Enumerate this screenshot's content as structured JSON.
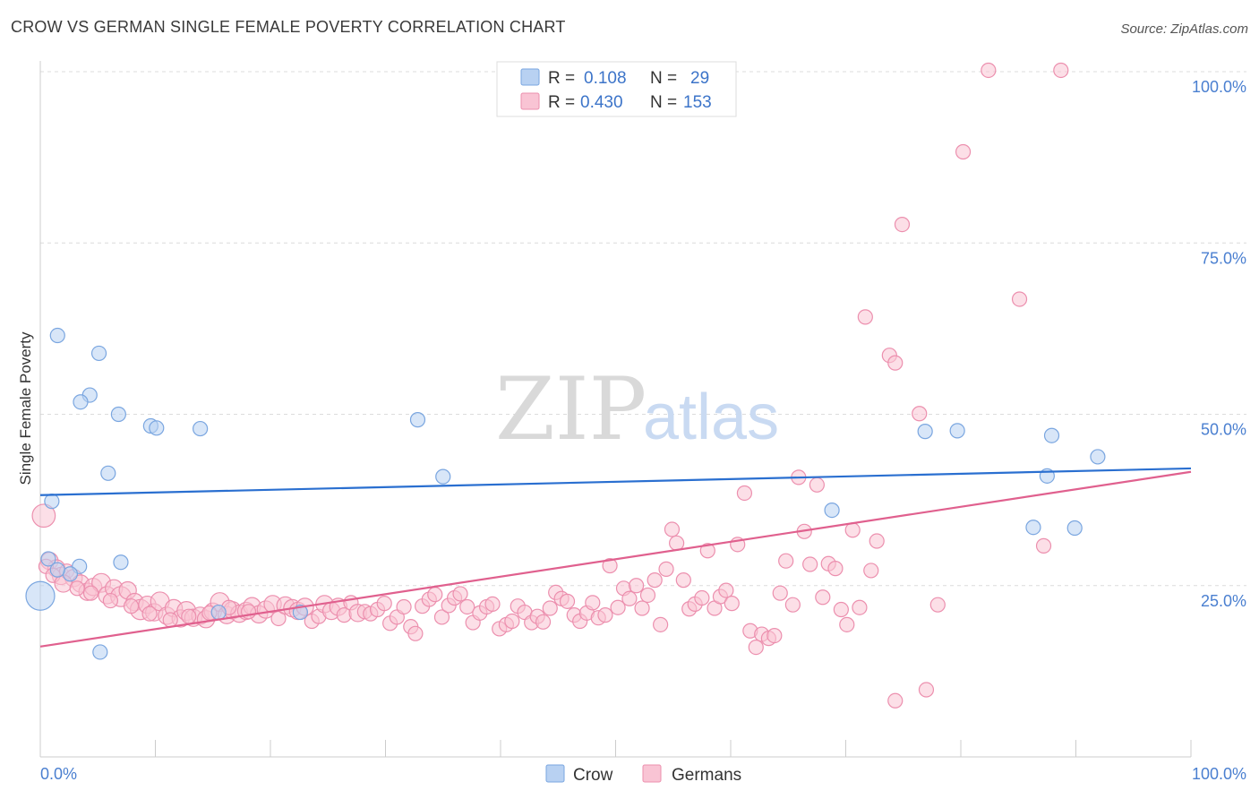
{
  "title": "CROW VS GERMAN SINGLE FEMALE POVERTY CORRELATION CHART",
  "source": "Source: ZipAtlas.com",
  "watermark": {
    "zip": "ZIP",
    "atlas": "atlas"
  },
  "colors": {
    "crow_fill": "#b8d1f2",
    "crow_stroke": "#7aa6e0",
    "crow_line": "#2a6fd0",
    "german_fill": "#f9c4d4",
    "german_stroke": "#ec8fae",
    "german_line": "#e0608e",
    "grid": "#dcdcdc",
    "tick_label": "#4a7fd0"
  },
  "legend": {
    "rows": [
      {
        "r_label": "R =",
        "r_value": "0.108",
        "n_label": "N =",
        "n_value": "29"
      },
      {
        "r_label": "R =",
        "r_value": "0.430",
        "n_label": "N =",
        "n_value": "153"
      }
    ]
  },
  "bottom_legend": [
    "Crow",
    "Germans"
  ],
  "chart_data": {
    "type": "scatter",
    "title": "CROW VS GERMAN SINGLE FEMALE POVERTY CORRELATION CHART",
    "xlabel": "",
    "ylabel": "Single Female Poverty",
    "xlim": [
      0,
      100
    ],
    "ylim": [
      0,
      101
    ],
    "x_tick_labels": [
      "0.0%",
      "100.0%"
    ],
    "y_ticks": [
      25,
      50,
      75,
      100
    ],
    "y_tick_labels": [
      "25.0%",
      "50.0%",
      "75.0%",
      "100.0%"
    ],
    "grid": true,
    "legend_placement": "top-center",
    "series": [
      {
        "name": "Crow",
        "stats": {
          "R": 0.108,
          "N": 29
        },
        "trend": {
          "x": [
            0,
            100
          ],
          "y": [
            38.2,
            42.1
          ]
        },
        "points": [
          [
            0,
            23.5,
            2
          ],
          [
            1.5,
            61.5,
            1
          ],
          [
            1.0,
            37.3,
            1
          ],
          [
            3.4,
            27.8,
            1
          ],
          [
            2.6,
            26.7,
            1
          ],
          [
            0.7,
            28.9,
            1
          ],
          [
            5.1,
            58.9,
            1
          ],
          [
            4.3,
            52.8,
            1
          ],
          [
            3.5,
            51.8,
            1
          ],
          [
            6.8,
            50.0,
            1
          ],
          [
            5.9,
            41.4,
            1
          ],
          [
            7.0,
            28.4,
            1
          ],
          [
            5.2,
            15.3,
            1
          ],
          [
            9.6,
            48.3,
            1
          ],
          [
            10.1,
            48.0,
            1
          ],
          [
            13.9,
            47.9,
            1
          ],
          [
            15.5,
            21.1,
            1
          ],
          [
            22.6,
            21.1,
            1
          ],
          [
            32.8,
            49.2,
            1
          ],
          [
            35.0,
            40.9,
            1
          ],
          [
            68.8,
            36.0,
            1
          ],
          [
            76.9,
            47.5,
            1
          ],
          [
            79.7,
            47.6,
            1
          ],
          [
            86.3,
            33.5,
            1
          ],
          [
            87.5,
            41.0,
            1
          ],
          [
            87.9,
            46.9,
            1
          ],
          [
            89.9,
            33.4,
            1
          ],
          [
            91.9,
            43.8,
            1
          ],
          [
            1.5,
            27.3,
            1
          ]
        ]
      },
      {
        "name": "Germans",
        "stats": {
          "R": 0.43,
          "N": 153
        },
        "trend": {
          "x": [
            0,
            100
          ],
          "y": [
            16.1,
            41.6
          ]
        },
        "points": [
          [
            0.3,
            35.2,
            1.6
          ],
          [
            0.8,
            28.6,
            1.2
          ],
          [
            1.4,
            27.5,
            1.2
          ],
          [
            1.8,
            26.4,
            1.2
          ],
          [
            2.3,
            27.1,
            1
          ],
          [
            2.9,
            26.1,
            1.2
          ],
          [
            3.5,
            25.3,
            1.2
          ],
          [
            4.1,
            24.1,
            1.2
          ],
          [
            4.6,
            24.8,
            1.2
          ],
          [
            5.3,
            25.4,
            1.3
          ],
          [
            5.8,
            23.6,
            1.2
          ],
          [
            6.4,
            24.6,
            1.2
          ],
          [
            7.0,
            23.4,
            1.4
          ],
          [
            7.6,
            24.3,
            1.2
          ],
          [
            8.2,
            22.6,
            1.2
          ],
          [
            8.7,
            21.5,
            1.4
          ],
          [
            9.3,
            22.2,
            1.2
          ],
          [
            9.9,
            21.1,
            1.2
          ],
          [
            10.4,
            22.7,
            1.3
          ],
          [
            11.0,
            20.6,
            1.2
          ],
          [
            11.6,
            21.7,
            1.2
          ],
          [
            12.2,
            20.2,
            1.2
          ],
          [
            12.7,
            21.3,
            1.3
          ],
          [
            13.3,
            20.3,
            1.2
          ],
          [
            13.9,
            20.6,
            1.2
          ],
          [
            14.4,
            20.1,
            1.2
          ],
          [
            15.0,
            21.2,
            1.2
          ],
          [
            15.6,
            22.6,
            1.3
          ],
          [
            16.2,
            20.7,
            1.2
          ],
          [
            16.7,
            21.4,
            1.2
          ],
          [
            17.3,
            20.9,
            1.2
          ],
          [
            17.9,
            21.3,
            1.2
          ],
          [
            18.4,
            22.0,
            1.2
          ],
          [
            19.0,
            20.8,
            1.2
          ],
          [
            19.6,
            21.5,
            1.2
          ],
          [
            20.2,
            22.3,
            1.2
          ],
          [
            20.7,
            20.2,
            1
          ],
          [
            21.3,
            22.1,
            1.2
          ],
          [
            21.9,
            21.7,
            1.2
          ],
          [
            22.4,
            21.3,
            1.2
          ],
          [
            23.0,
            21.9,
            1.2
          ],
          [
            23.6,
            19.8,
            1
          ],
          [
            24.2,
            20.5,
            1
          ],
          [
            24.7,
            22.3,
            1.2
          ],
          [
            25.3,
            21.3,
            1.2
          ],
          [
            25.9,
            21.9,
            1.2
          ],
          [
            26.4,
            20.7,
            1
          ],
          [
            27.0,
            22.5,
            1
          ],
          [
            27.6,
            21.0,
            1.2
          ],
          [
            28.2,
            21.2,
            1
          ],
          [
            28.7,
            20.9,
            1
          ],
          [
            29.3,
            21.5,
            1
          ],
          [
            29.9,
            22.4,
            1
          ],
          [
            30.4,
            19.5,
            1
          ],
          [
            31.0,
            20.4,
            1
          ],
          [
            31.6,
            21.9,
            1
          ],
          [
            32.2,
            19.0,
            1
          ],
          [
            32.6,
            18.0,
            1
          ],
          [
            33.2,
            22.0,
            1
          ],
          [
            33.8,
            23.0,
            1
          ],
          [
            34.3,
            23.7,
            1
          ],
          [
            34.9,
            20.4,
            1
          ],
          [
            35.5,
            22.1,
            1
          ],
          [
            36.0,
            23.2,
            1
          ],
          [
            36.5,
            23.8,
            1
          ],
          [
            37.1,
            21.9,
            1
          ],
          [
            37.6,
            19.6,
            1
          ],
          [
            38.2,
            21.0,
            1
          ],
          [
            38.8,
            21.9,
            1
          ],
          [
            39.3,
            22.3,
            1
          ],
          [
            39.9,
            18.7,
            1
          ],
          [
            40.5,
            19.3,
            1
          ],
          [
            41.0,
            19.8,
            1
          ],
          [
            41.5,
            22.0,
            1
          ],
          [
            42.1,
            21.1,
            1
          ],
          [
            42.7,
            19.6,
            1
          ],
          [
            43.2,
            20.5,
            1
          ],
          [
            43.7,
            19.7,
            1
          ],
          [
            44.3,
            21.7,
            1
          ],
          [
            44.8,
            24.0,
            1
          ],
          [
            45.3,
            23.1,
            1
          ],
          [
            45.8,
            22.7,
            1
          ],
          [
            46.4,
            20.7,
            1
          ],
          [
            46.9,
            19.8,
            1
          ],
          [
            47.5,
            21.0,
            1
          ],
          [
            48.0,
            22.5,
            1
          ],
          [
            48.5,
            20.3,
            1
          ],
          [
            49.1,
            20.7,
            1
          ],
          [
            49.5,
            27.9,
            1
          ],
          [
            50.2,
            21.8,
            1
          ],
          [
            50.7,
            24.6,
            1
          ],
          [
            51.2,
            23.1,
            1
          ],
          [
            51.8,
            25.0,
            1
          ],
          [
            52.3,
            21.7,
            1
          ],
          [
            52.8,
            23.6,
            1
          ],
          [
            53.4,
            25.8,
            1
          ],
          [
            53.9,
            19.3,
            1
          ],
          [
            54.4,
            27.4,
            1
          ],
          [
            54.9,
            33.2,
            1
          ],
          [
            55.3,
            31.2,
            1
          ],
          [
            55.9,
            25.8,
            1
          ],
          [
            56.4,
            21.6,
            1
          ],
          [
            56.9,
            22.3,
            1
          ],
          [
            57.5,
            23.2,
            1
          ],
          [
            58.0,
            30.1,
            1
          ],
          [
            58.6,
            21.7,
            1
          ],
          [
            59.1,
            23.4,
            1
          ],
          [
            59.6,
            24.3,
            1
          ],
          [
            60.1,
            22.4,
            1
          ],
          [
            60.6,
            31.0,
            1
          ],
          [
            61.2,
            38.5,
            1
          ],
          [
            61.7,
            18.4,
            1
          ],
          [
            62.2,
            16.0,
            1
          ],
          [
            62.7,
            17.9,
            1
          ],
          [
            63.3,
            17.3,
            1
          ],
          [
            63.8,
            17.7,
            1
          ],
          [
            64.3,
            23.9,
            1
          ],
          [
            64.8,
            28.6,
            1
          ],
          [
            65.4,
            22.2,
            1
          ],
          [
            65.9,
            40.8,
            1
          ],
          [
            66.4,
            32.9,
            1
          ],
          [
            66.9,
            28.1,
            1
          ],
          [
            67.5,
            39.7,
            1
          ],
          [
            68.0,
            23.3,
            1
          ],
          [
            68.5,
            28.2,
            1
          ],
          [
            69.1,
            27.5,
            1
          ],
          [
            69.6,
            21.5,
            1
          ],
          [
            70.1,
            19.3,
            1
          ],
          [
            70.6,
            33.1,
            1
          ],
          [
            71.2,
            21.8,
            1
          ],
          [
            71.7,
            64.2,
            1
          ],
          [
            72.2,
            27.2,
            1
          ],
          [
            72.7,
            31.5,
            1
          ],
          [
            73.8,
            58.6,
            1
          ],
          [
            74.3,
            57.5,
            1
          ],
          [
            74.3,
            8.2,
            1
          ],
          [
            74.9,
            77.7,
            1
          ],
          [
            76.4,
            50.1,
            1
          ],
          [
            77.0,
            9.8,
            1
          ],
          [
            78.0,
            22.2,
            1
          ],
          [
            80.2,
            88.3,
            1
          ],
          [
            82.4,
            100.2,
            1
          ],
          [
            85.1,
            66.8,
            1
          ],
          [
            87.2,
            30.8,
            1
          ],
          [
            88.7,
            100.2,
            1
          ],
          [
            0.5,
            27.8,
            1
          ],
          [
            1.1,
            26.5,
            1
          ],
          [
            2.0,
            25.3,
            1.2
          ],
          [
            3.2,
            24.6,
            1
          ],
          [
            4.4,
            23.9,
            1
          ],
          [
            6.1,
            22.8,
            1
          ],
          [
            7.9,
            22.0,
            1
          ],
          [
            9.5,
            20.9,
            1
          ],
          [
            11.3,
            20.0,
            1
          ],
          [
            12.9,
            20.5,
            1
          ],
          [
            14.7,
            21.0,
            1
          ],
          [
            16.4,
            21.8,
            1
          ],
          [
            18.1,
            21.2,
            1
          ]
        ]
      }
    ]
  }
}
